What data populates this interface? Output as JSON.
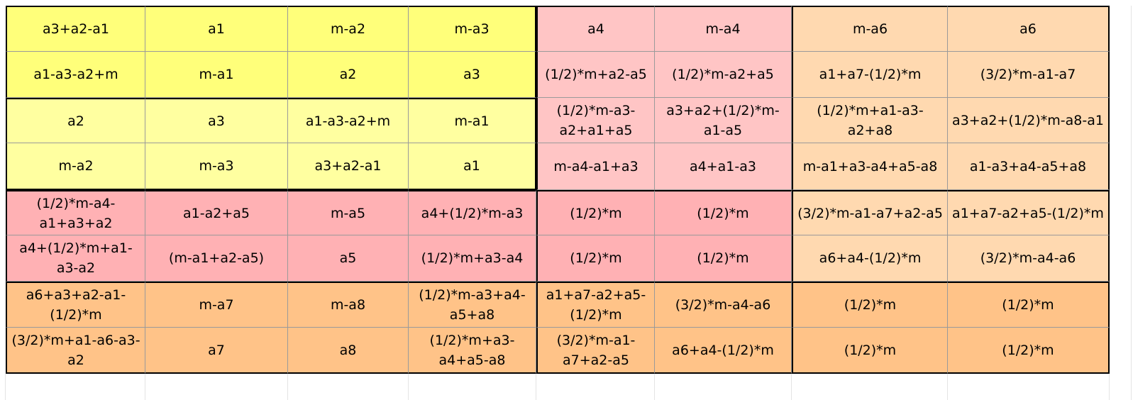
{
  "sheet": {
    "rows": [
      [
        "a3+a2-a1",
        "a1",
        "m-a2",
        "m-a3",
        "a4",
        "m-a4",
        "m-a6",
        "a6"
      ],
      [
        "a1-a3-a2+m",
        "m-a1",
        "a2",
        "a3",
        "(1/2)*m+a2-a5",
        "(1/2)*m-a2+a5",
        "a1+a7-(1/2)*m",
        "(3/2)*m-a1-a7"
      ],
      [
        "a2",
        "a3",
        "a1-a3-a2+m",
        "m-a1",
        "(1/2)*m-a3-a2+a1+a5",
        "a3+a2+(1/2)*m-a1-a5",
        "(1/2)*m+a1-a3-a2+a8",
        "a3+a2+(1/2)*m-a8-a1"
      ],
      [
        "m-a2",
        "m-a3",
        "a3+a2-a1",
        "a1",
        "m-a4-a1+a3",
        "a4+a1-a3",
        "m-a1+a3-a4+a5-a8",
        "a1-a3+a4-a5+a8"
      ],
      [
        "(1/2)*m-a4-a1+a3+a2",
        "a1-a2+a5",
        "m-a5",
        "a4+(1/2)*m-a3",
        "(1/2)*m",
        "(1/2)*m",
        "(3/2)*m-a1-a7+a2-a5",
        "a1+a7-a2+a5-(1/2)*m"
      ],
      [
        "a4+(1/2)*m+a1-a3-a2",
        "(m-a1+a2-a5)",
        "a5",
        "(1/2)*m+a3-a4",
        "(1/2)*m",
        "(1/2)*m",
        "a6+a4-(1/2)*m",
        "(3/2)*m-a4-a6"
      ],
      [
        "a6+a3+a2-a1-(1/2)*m",
        "m-a7",
        "m-a8",
        "(1/2)*m-a3+a4-a5+a8",
        "a1+a7-a2+a5-(1/2)*m",
        "(3/2)*m-a4-a6",
        "(1/2)*m",
        "(1/2)*m"
      ],
      [
        "(3/2)*m+a1-a6-a3-a2",
        "a7",
        "a8",
        "(1/2)*m+a3-a4+a5-a8",
        "(3/2)*m-a1-a7+a2-a5",
        "a6+a4-(1/2)*m",
        "(1/2)*m",
        "(1/2)*m"
      ]
    ],
    "fills": [
      [
        "#ffff7a",
        "#ffff7a",
        "#ffff7a",
        "#ffff7a",
        "#ffc5c5",
        "#ffc5c5",
        "#ffd9b0",
        "#ffd9b0"
      ],
      [
        "#ffff7a",
        "#ffff7a",
        "#ffff7a",
        "#ffff7a",
        "#ffc5c5",
        "#ffc5c5",
        "#ffd9b0",
        "#ffd9b0"
      ],
      [
        "#ffffa0",
        "#ffffa0",
        "#ffffa0",
        "#ffffa0",
        "#ffc5c5",
        "#ffc5c5",
        "#ffd9b0",
        "#ffd9b0"
      ],
      [
        "#ffffa0",
        "#ffffa0",
        "#ffffa0",
        "#ffffa0",
        "#ffc5c5",
        "#ffc5c5",
        "#ffd9b0",
        "#ffd9b0"
      ],
      [
        "#ffb1b4",
        "#ffb1b4",
        "#ffb1b4",
        "#ffb1b4",
        "#ffb1b4",
        "#ffb1b4",
        "#ffd9b0",
        "#ffd9b0"
      ],
      [
        "#ffb1b4",
        "#ffb1b4",
        "#ffb1b4",
        "#ffb1b4",
        "#ffb1b4",
        "#ffb1b4",
        "#ffd9b0",
        "#ffd9b0"
      ],
      [
        "#ffc388",
        "#ffc388",
        "#ffc388",
        "#ffc388",
        "#ffc388",
        "#ffc388",
        "#ffc388",
        "#ffc388"
      ],
      [
        "#ffc388",
        "#ffc388",
        "#ffc388",
        "#ffc388",
        "#ffc388",
        "#ffc388",
        "#ffc388",
        "#ffc388"
      ]
    ]
  }
}
